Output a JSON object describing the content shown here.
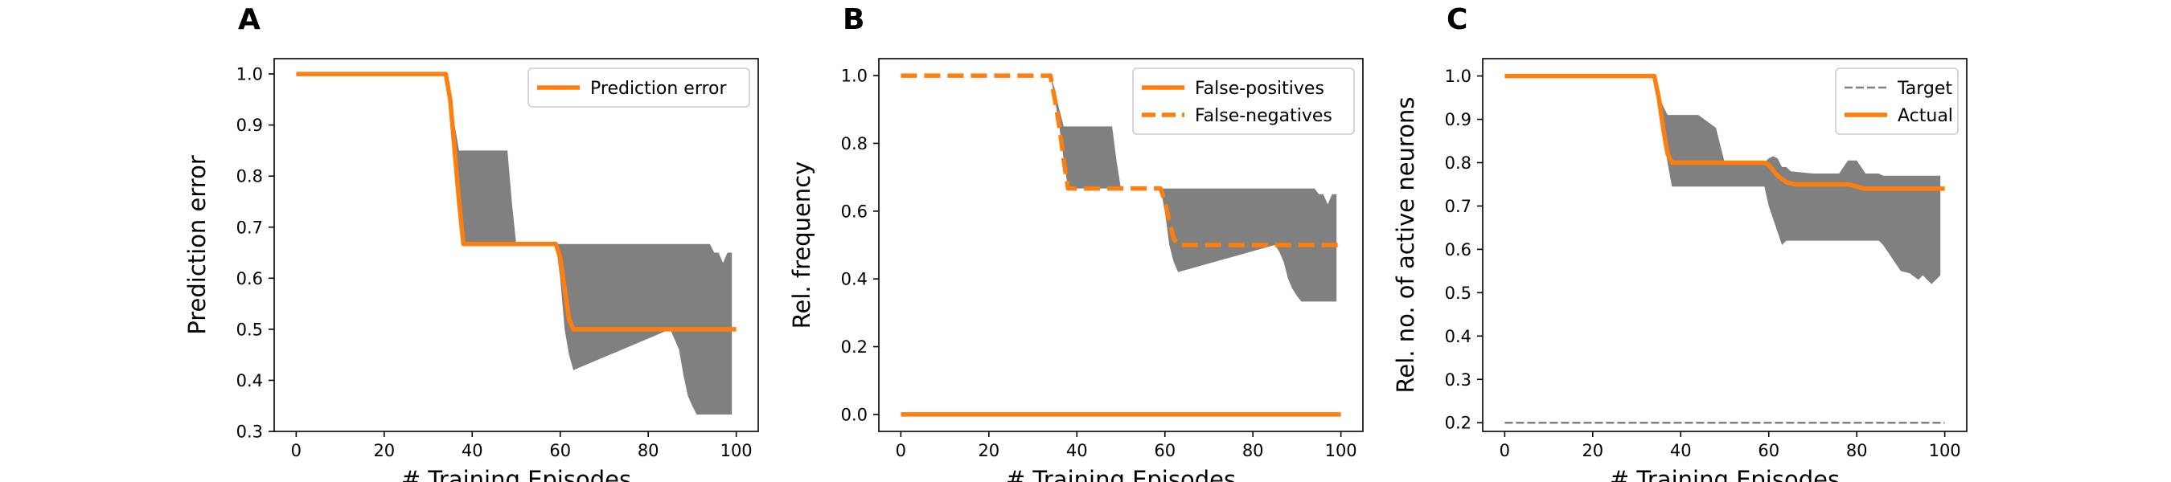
{
  "colors": {
    "line": "#ff7f0e",
    "band": "#808080",
    "target": "#808080",
    "axis": "#000000"
  },
  "chart_data": [
    {
      "panel_label": "A",
      "type": "line",
      "title": "",
      "xlabel": "# Training Episodes",
      "ylabel": "Prediction error",
      "xlim": [
        -5,
        105
      ],
      "ylim": [
        0.3,
        1.03
      ],
      "xticks": [
        0,
        20,
        40,
        60,
        80,
        100
      ],
      "xtick_labels": [
        "0",
        "20",
        "40",
        "60",
        "80",
        "100"
      ],
      "yticks": [
        0.3,
        0.4,
        0.5,
        0.6,
        0.7,
        0.8,
        0.9,
        1.0
      ],
      "ytick_labels": [
        "0.3",
        "0.4",
        "0.5",
        "0.6",
        "0.7",
        "0.8",
        "0.9",
        "1.0"
      ],
      "legend_position": "top-right",
      "series": [
        {
          "name": "Prediction error",
          "style": "solid",
          "x": [
            0,
            34,
            35,
            36,
            37,
            38,
            59,
            60,
            61,
            62,
            63,
            100
          ],
          "y": [
            1.0,
            1.0,
            0.95,
            0.85,
            0.75,
            0.667,
            0.667,
            0.64,
            0.58,
            0.52,
            0.5,
            0.5
          ]
        }
      ],
      "bands": [
        {
          "x": [
            34,
            35,
            36,
            37,
            38,
            48,
            49,
            50,
            59,
            60,
            61,
            62,
            63,
            85,
            86,
            87,
            88,
            89,
            90,
            91,
            92,
            93,
            94,
            95,
            96,
            97,
            98,
            99
          ],
          "lower": [
            1.0,
            0.95,
            0.85,
            0.75,
            0.667,
            0.667,
            0.667,
            0.667,
            0.667,
            0.6,
            0.5,
            0.45,
            0.42,
            0.5,
            0.48,
            0.46,
            0.41,
            0.37,
            0.35,
            0.333,
            0.333,
            0.333,
            0.333,
            0.333,
            0.333,
            0.333,
            0.333,
            0.333
          ],
          "upper": [
            1.0,
            0.96,
            0.9,
            0.85,
            0.85,
            0.85,
            0.75,
            0.667,
            0.667,
            0.667,
            0.667,
            0.667,
            0.667,
            0.667,
            0.667,
            0.667,
            0.667,
            0.667,
            0.667,
            0.667,
            0.667,
            0.667,
            0.667,
            0.65,
            0.65,
            0.63,
            0.65,
            0.65
          ]
        }
      ]
    },
    {
      "panel_label": "B",
      "type": "line",
      "title": "",
      "xlabel": "# Training Episodes",
      "ylabel": "Rel. frequency",
      "xlim": [
        -5,
        105
      ],
      "ylim": [
        -0.05,
        1.05
      ],
      "xticks": [
        0,
        20,
        40,
        60,
        80,
        100
      ],
      "xtick_labels": [
        "0",
        "20",
        "40",
        "60",
        "80",
        "100"
      ],
      "yticks": [
        0.0,
        0.2,
        0.4,
        0.6,
        0.8,
        1.0
      ],
      "ytick_labels": [
        "0.0",
        "0.2",
        "0.4",
        "0.6",
        "0.8",
        "1.0"
      ],
      "legend_position": "top-right",
      "series": [
        {
          "name": "False-positives",
          "style": "solid",
          "x": [
            0,
            100
          ],
          "y": [
            0.0,
            0.0
          ]
        },
        {
          "name": "False-negatives",
          "style": "dashed",
          "x": [
            0,
            34,
            35,
            36,
            37,
            38,
            59,
            60,
            61,
            62,
            63,
            100
          ],
          "y": [
            1.0,
            1.0,
            0.93,
            0.85,
            0.75,
            0.667,
            0.667,
            0.63,
            0.57,
            0.52,
            0.5,
            0.5
          ]
        }
      ],
      "bands": [
        {
          "x": [
            34,
            35,
            36,
            37,
            38,
            48,
            49,
            50,
            59,
            60,
            61,
            62,
            63,
            85,
            86,
            87,
            88,
            89,
            90,
            91,
            92,
            93,
            94,
            95,
            96,
            97,
            98,
            99
          ],
          "lower": [
            1.0,
            0.93,
            0.85,
            0.75,
            0.667,
            0.667,
            0.667,
            0.667,
            0.667,
            0.6,
            0.5,
            0.45,
            0.42,
            0.5,
            0.48,
            0.45,
            0.4,
            0.37,
            0.35,
            0.333,
            0.333,
            0.333,
            0.333,
            0.333,
            0.333,
            0.333,
            0.333,
            0.333
          ],
          "upper": [
            1.0,
            0.96,
            0.9,
            0.85,
            0.85,
            0.85,
            0.75,
            0.667,
            0.667,
            0.667,
            0.667,
            0.667,
            0.667,
            0.667,
            0.667,
            0.667,
            0.667,
            0.667,
            0.667,
            0.667,
            0.667,
            0.667,
            0.667,
            0.65,
            0.65,
            0.62,
            0.65,
            0.65
          ]
        }
      ]
    },
    {
      "panel_label": "C",
      "type": "line",
      "title": "",
      "xlabel": "# Training Episodes",
      "ylabel": "Rel. no. of active neurons",
      "xlim": [
        -5,
        105
      ],
      "ylim": [
        0.18,
        1.04
      ],
      "xticks": [
        0,
        20,
        40,
        60,
        80,
        100
      ],
      "xtick_labels": [
        "0",
        "20",
        "40",
        "60",
        "80",
        "100"
      ],
      "yticks": [
        0.2,
        0.3,
        0.4,
        0.5,
        0.6,
        0.7,
        0.8,
        0.9,
        1.0
      ],
      "ytick_labels": [
        "0.2",
        "0.3",
        "0.4",
        "0.5",
        "0.6",
        "0.7",
        "0.8",
        "0.9",
        "1.0"
      ],
      "legend_position": "top-right",
      "series": [
        {
          "name": "Target",
          "style": "thin-dashed",
          "x": [
            0,
            100
          ],
          "y": [
            0.2,
            0.2
          ]
        },
        {
          "name": "Actual",
          "style": "solid",
          "x": [
            0,
            34,
            35,
            36,
            37,
            38,
            40,
            59,
            60,
            62,
            64,
            66,
            78,
            80,
            82,
            86,
            90,
            100
          ],
          "y": [
            1.0,
            1.0,
            0.95,
            0.88,
            0.82,
            0.8,
            0.8,
            0.8,
            0.795,
            0.77,
            0.755,
            0.75,
            0.75,
            0.745,
            0.74,
            0.74,
            0.74,
            0.74
          ]
        }
      ],
      "bands": [
        {
          "x": [
            34,
            35,
            36,
            37,
            38,
            40,
            44,
            48,
            50,
            55,
            59,
            60,
            61,
            62,
            63,
            64,
            65,
            70,
            76,
            78,
            80,
            82,
            85,
            86,
            88,
            90,
            92,
            94,
            95,
            96,
            97,
            98,
            99
          ],
          "lower": [
            1.0,
            0.93,
            0.86,
            0.8,
            0.745,
            0.745,
            0.745,
            0.745,
            0.745,
            0.745,
            0.745,
            0.7,
            0.67,
            0.64,
            0.61,
            0.62,
            0.62,
            0.62,
            0.62,
            0.62,
            0.62,
            0.62,
            0.62,
            0.61,
            0.58,
            0.55,
            0.545,
            0.53,
            0.54,
            0.53,
            0.52,
            0.53,
            0.54
          ],
          "upper": [
            1.0,
            0.96,
            0.93,
            0.91,
            0.91,
            0.91,
            0.91,
            0.88,
            0.8,
            0.8,
            0.8,
            0.81,
            0.815,
            0.81,
            0.79,
            0.79,
            0.78,
            0.775,
            0.775,
            0.805,
            0.805,
            0.775,
            0.775,
            0.77,
            0.77,
            0.77,
            0.77,
            0.77,
            0.77,
            0.77,
            0.77,
            0.77,
            0.77
          ]
        }
      ]
    }
  ]
}
